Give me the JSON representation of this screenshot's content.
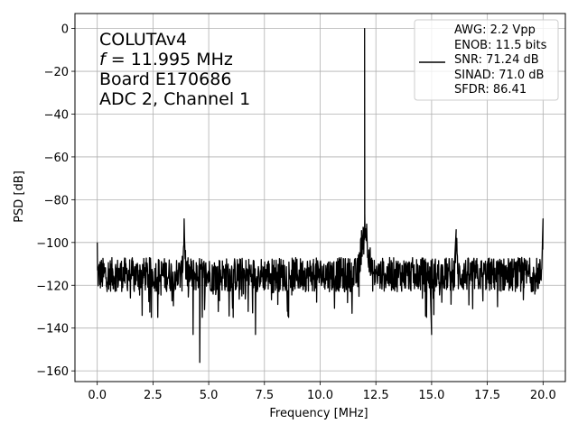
{
  "chart_data": {
    "type": "line",
    "xlabel": "Frequency [MHz]",
    "ylabel": "PSD [dB]",
    "xlim": [
      -1.0,
      21.0
    ],
    "ylim": [
      -165,
      7
    ],
    "x_ticks": [
      0.0,
      2.5,
      5.0,
      7.5,
      10.0,
      12.5,
      15.0,
      17.5,
      20.0
    ],
    "x_tick_labels": [
      "0.0",
      "2.5",
      "5.0",
      "7.5",
      "10.0",
      "12.5",
      "15.0",
      "17.5",
      "20.0"
    ],
    "y_ticks": [
      0,
      -20,
      -40,
      -60,
      -80,
      -100,
      -120,
      -140,
      -160
    ],
    "y_tick_labels": [
      "0",
      "−20",
      "−40",
      "−60",
      "−80",
      "−100",
      "−120",
      "−140",
      "−160"
    ],
    "grid": true,
    "annotation_lines": [
      "COLUTAv4",
      "= 11.995 MHz",
      "Board E170686",
      "ADC 2, Channel 1"
    ],
    "annotation_italic_prefix": "f",
    "legend": {
      "placement": "top-right",
      "lines": [
        "AWG: 2.2 Vpp",
        "ENOB: 11.5 bits",
        "SNR: 71.24 dB",
        "SINAD: 71.0 dB",
        "SFDR: 86.41"
      ]
    },
    "series": [
      {
        "color": "#000000",
        "noise_floor_db": -115,
        "spectrum_start_db": -100,
        "spectrum_end_db": -89,
        "features": [
          {
            "kind": "peak",
            "x": 11.995,
            "y": 0
          },
          {
            "kind": "spur",
            "x": 3.9,
            "y": -89
          },
          {
            "kind": "spur",
            "x": 12.0,
            "y": -86
          },
          {
            "kind": "spur",
            "x": 16.1,
            "y": -94
          },
          {
            "kind": "spur",
            "x": 20.0,
            "y": -89
          },
          {
            "kind": "dip",
            "x": 4.3,
            "y": -143
          },
          {
            "kind": "dip",
            "x": 4.6,
            "y": -156
          },
          {
            "kind": "dip",
            "x": 7.1,
            "y": -143
          },
          {
            "kind": "dip",
            "x": 15.0,
            "y": -143
          }
        ]
      }
    ]
  }
}
